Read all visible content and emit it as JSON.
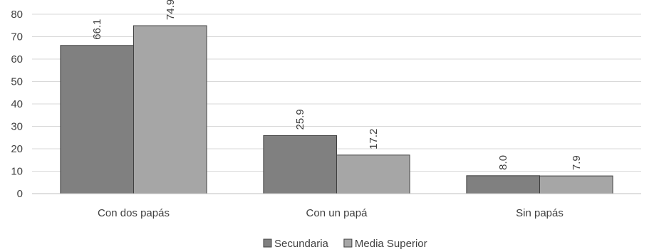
{
  "chart_data": {
    "type": "bar",
    "categories": [
      "Con dos papás",
      "Con un papá",
      "Sin papás"
    ],
    "series": [
      {
        "name": "Secundaria",
        "values": [
          66.1,
          25.9,
          8.0
        ],
        "color": "#808080",
        "labels": [
          "66.1",
          "25.9",
          "8.0"
        ]
      },
      {
        "name": "Media Superior",
        "values": [
          74.9,
          17.2,
          7.9
        ],
        "color": "#a6a6a6",
        "labels": [
          "74.9",
          "17.2",
          "7.9"
        ]
      }
    ],
    "yticks": [
      "0",
      "10",
      "20",
      "30",
      "40",
      "50",
      "60",
      "70",
      "80"
    ],
    "ylim": [
      0,
      80
    ],
    "grid": true,
    "legend_position": "bottom",
    "title": "",
    "xlabel": "",
    "ylabel": ""
  }
}
